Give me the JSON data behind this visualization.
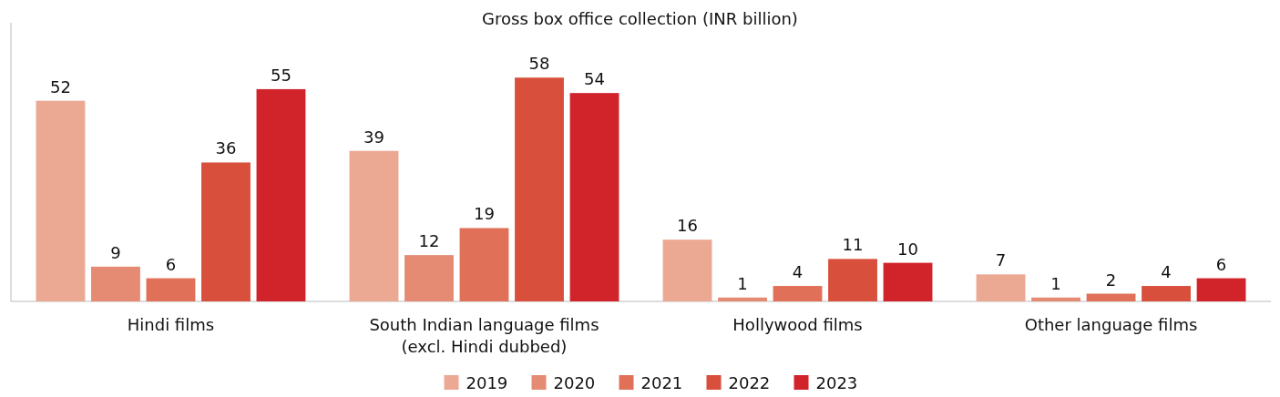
{
  "chart_data": {
    "type": "bar",
    "title": "Gross box office collection (INR billion)",
    "categories": [
      "Hindi films",
      "South Indian language films\n(excl. Hindi dubbed)",
      "Hollywood films",
      "Other language films"
    ],
    "series": [
      {
        "name": "2019",
        "color": "#eba893",
        "values": [
          52,
          39,
          16,
          7
        ]
      },
      {
        "name": "2020",
        "color": "#e58b73",
        "values": [
          9,
          12,
          1,
          1
        ]
      },
      {
        "name": "2021",
        "color": "#e07058",
        "values": [
          6,
          19,
          4,
          2
        ]
      },
      {
        "name": "2022",
        "color": "#d84f3c",
        "values": [
          36,
          58,
          11,
          4
        ]
      },
      {
        "name": "2023",
        "color": "#d1232a",
        "values": [
          55,
          54,
          10,
          6
        ]
      }
    ],
    "data_labels": true,
    "legend": "bottom"
  }
}
